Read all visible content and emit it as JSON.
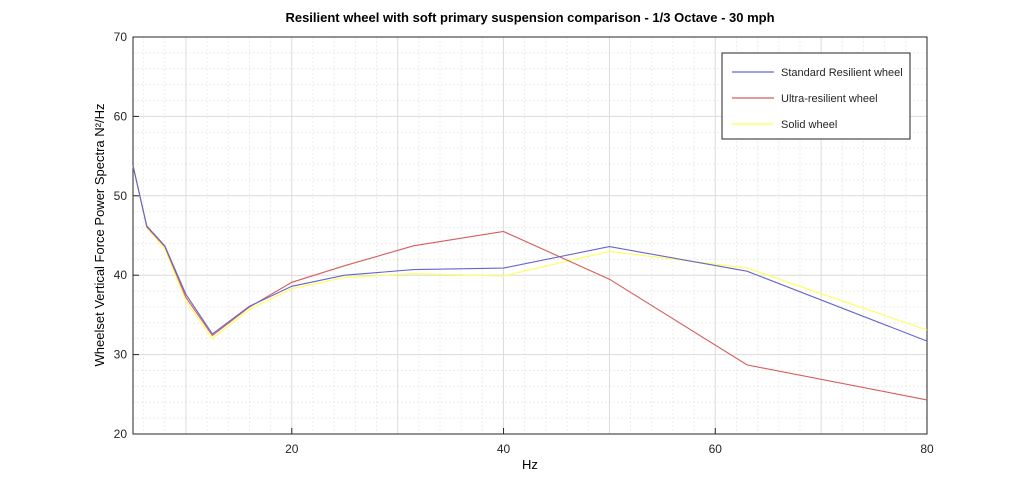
{
  "chart_data": {
    "type": "line",
    "title": "Resilient wheel with soft primary suspension comparison - 1/3 Octave - 30 mph",
    "xlabel": "Hz",
    "ylabel": "Wheelset Vertical Force Power Spectra N²/Hz",
    "xlim": [
      5,
      80
    ],
    "ylim": [
      20,
      70
    ],
    "xticks": [
      20,
      40,
      60,
      80
    ],
    "yticks": [
      20,
      30,
      40,
      50,
      60,
      70
    ],
    "grid": "major and minor",
    "legend_position": "top-right",
    "series": [
      {
        "name": "Standard Resilient wheel",
        "color": "#6666cc",
        "x": [
          5,
          6.3,
          8,
          10,
          12.5,
          16,
          20,
          25,
          31.5,
          40,
          50,
          63,
          80
        ],
        "y": [
          53.8,
          46.2,
          43.7,
          37.6,
          32.6,
          36.1,
          38.6,
          40.0,
          40.7,
          40.9,
          43.6,
          40.5,
          31.7
        ]
      },
      {
        "name": "Ultra-resilient wheel",
        "color": "#d95c5c",
        "x": [
          5,
          6.3,
          8,
          10,
          12.5,
          16,
          20,
          25,
          31.5,
          40,
          50,
          63,
          80
        ],
        "y": [
          53.8,
          46.1,
          43.6,
          37.2,
          32.4,
          36.0,
          39.1,
          41.2,
          43.7,
          45.5,
          39.5,
          28.7,
          24.3
        ]
      },
      {
        "name": "Solid wheel",
        "color": "#ffff55",
        "x": [
          5,
          6.3,
          8,
          10,
          12.5,
          16,
          20,
          25,
          31.5,
          40,
          50,
          63,
          80
        ],
        "y": [
          53.8,
          46.0,
          43.3,
          36.8,
          32.0,
          35.7,
          38.3,
          39.7,
          40.2,
          39.9,
          43.0,
          40.9,
          33.1
        ]
      }
    ]
  }
}
